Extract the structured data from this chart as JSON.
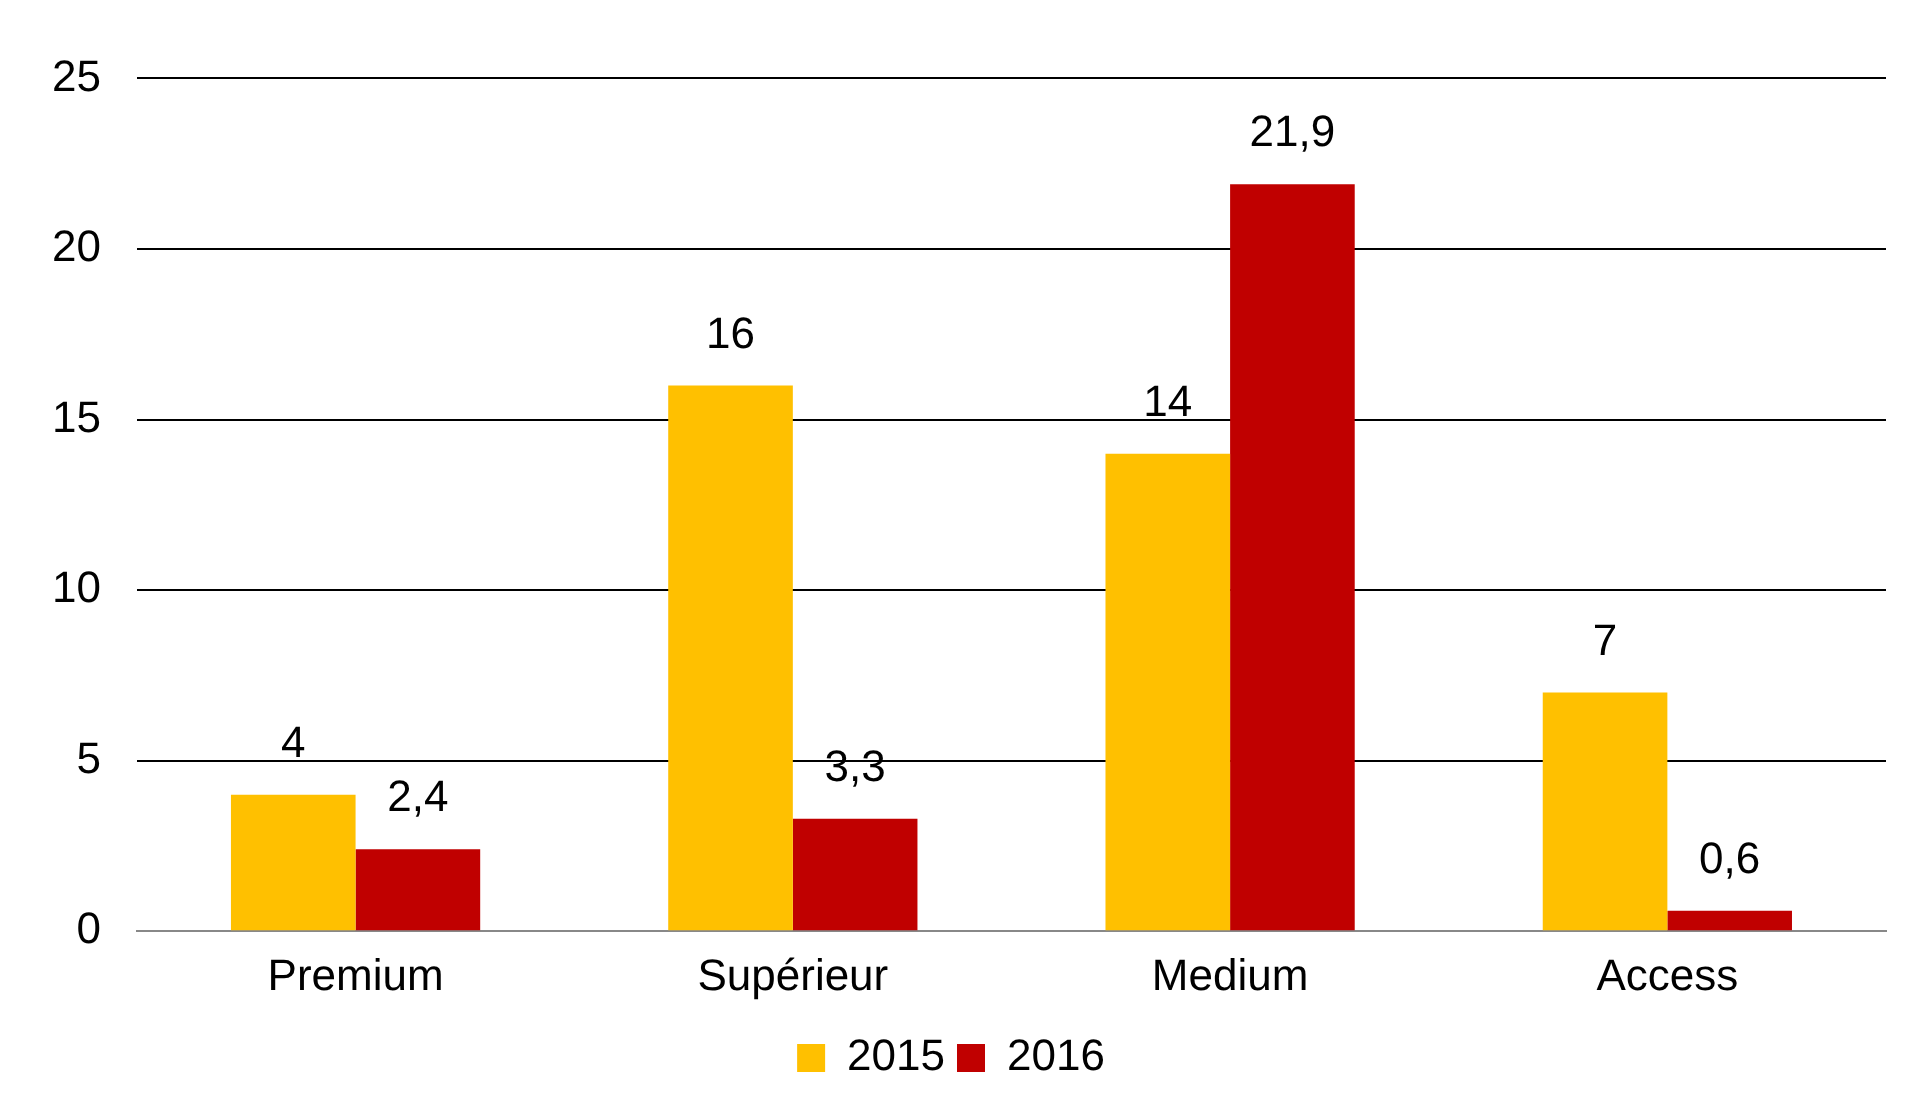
{
  "chart_data": {
    "type": "bar",
    "categories": [
      "Premium",
      "Supérieur",
      "Medium",
      "Access"
    ],
    "series": [
      {
        "name": "2015",
        "color": "#ffc000",
        "values": [
          4,
          16,
          14,
          7
        ],
        "value_labels": [
          "4",
          "16",
          "14",
          "7"
        ]
      },
      {
        "name": "2016",
        "color": "#c00000",
        "values": [
          2.4,
          3.3,
          21.9,
          0.6
        ],
        "value_labels": [
          "2,4",
          "3,3",
          "21,9",
          "0,6"
        ]
      }
    ],
    "ylim": [
      0,
      25
    ],
    "yticks": [
      0,
      5,
      10,
      15,
      20,
      25
    ],
    "grid": "y",
    "legend": "bottom"
  }
}
